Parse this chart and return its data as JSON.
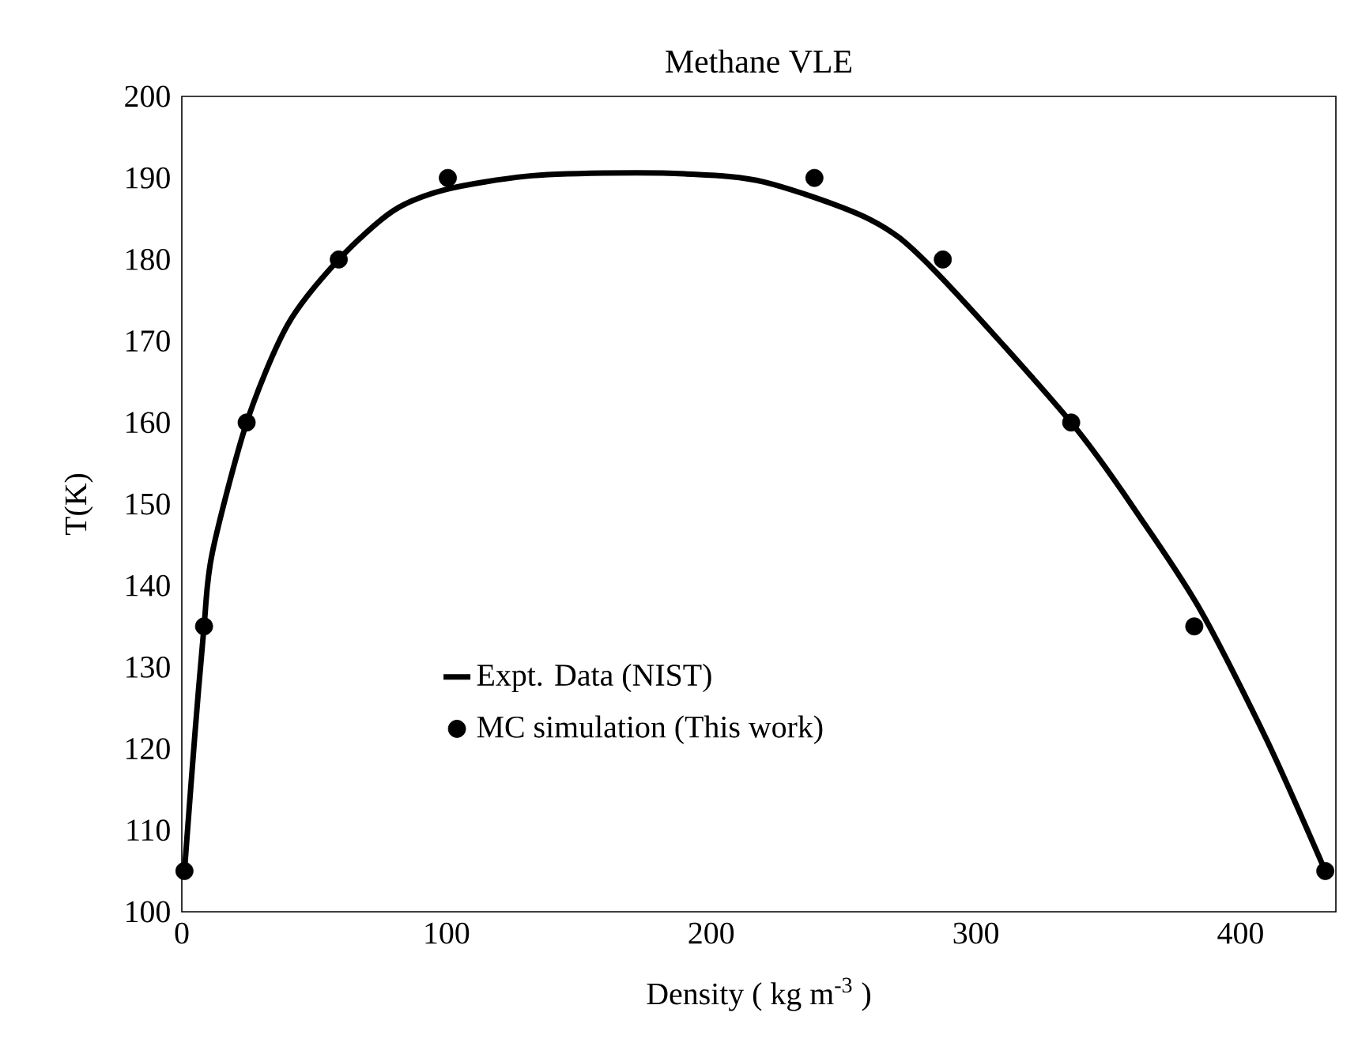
{
  "chart_data": {
    "type": "line",
    "title": "Methane VLE",
    "xlabel": "Density ( kg m$^{-3}$ )",
    "ylabel": "T(K)",
    "xlim": [
      0,
      436
    ],
    "xticks": [
      0,
      100,
      200,
      300,
      400
    ],
    "ylim": [
      100,
      200
    ],
    "yticks": [
      100,
      110,
      120,
      130,
      140,
      150,
      160,
      170,
      180,
      190,
      200
    ],
    "grid": false,
    "legend": "bottom left",
    "series": [
      {
        "name": "Expt. Data (NIST)",
        "color": "#000000",
        "marker": "none",
        "line_style": "solid",
        "x": [
          1,
          5,
          8.4,
          11.5,
          24.5,
          40,
          59.3,
          80,
          100,
          130,
          160,
          190,
          220,
          260,
          283.6,
          336,
          363,
          385,
          410,
          432
        ],
        "values": [
          105,
          122,
          135,
          144,
          160,
          172,
          180,
          186,
          188.6,
          190.2,
          190.6,
          190.5,
          189.5,
          184.9,
          178.9,
          160,
          147.9,
          136.9,
          121,
          105
        ]
      },
      {
        "name": "MC simulation (This work)",
        "type": "scatter",
        "color": "#000000",
        "marker": "circle",
        "x": [
          1,
          8.4,
          24.5,
          59.3,
          100.5,
          239,
          287.5,
          336,
          382.5,
          432
        ],
        "values": [
          105,
          135,
          160,
          180,
          190,
          190,
          180,
          160,
          135,
          105
        ]
      }
    ]
  }
}
